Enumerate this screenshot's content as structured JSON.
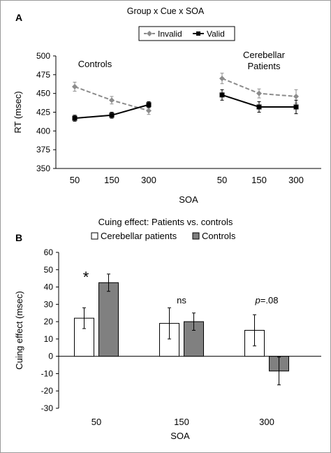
{
  "chart_data": [
    {
      "panel_label": "A",
      "type": "line",
      "title": "Group x Cue x SOA",
      "xlabel": "SOA",
      "ylabel": "RT (msec)",
      "ylim": [
        350,
        500
      ],
      "yticks": [
        350,
        375,
        400,
        425,
        450,
        475,
        500
      ],
      "grid": false,
      "legend_position": "top-right",
      "series": [
        {
          "name": "Invalid",
          "color": "#8c8c8c",
          "dashed": true,
          "marker": "diamond"
        },
        {
          "name": "Valid",
          "color": "#000000",
          "dashed": false,
          "marker": "square"
        }
      ],
      "groups": [
        {
          "label": "Controls",
          "x": [
            "50",
            "150",
            "300"
          ],
          "values": {
            "Invalid": [
              459,
              441,
              427
            ],
            "Valid": [
              417,
              421,
              435
            ]
          },
          "errors": {
            "Invalid": [
              6,
              5,
              5
            ],
            "Valid": [
              4,
              4,
              4
            ]
          }
        },
        {
          "label": "Cerebellar Patients",
          "x": [
            "50",
            "150",
            "300"
          ],
          "values": {
            "Invalid": [
              470,
              450,
              446
            ],
            "Valid": [
              448,
              432,
              432
            ]
          },
          "errors": {
            "Invalid": [
              7,
              6,
              9
            ],
            "Valid": [
              7,
              7,
              9
            ]
          }
        }
      ]
    },
    {
      "panel_label": "B",
      "type": "bar",
      "title": "Cuing effect: Patients vs. controls",
      "xlabel": "SOA",
      "ylabel": "Cuing effect (msec)",
      "ylim": [
        -30,
        60
      ],
      "yticks": [
        -30,
        -20,
        -10,
        0,
        10,
        20,
        30,
        40,
        50,
        60
      ],
      "grid": false,
      "legend_position": "top",
      "categories": [
        "50",
        "150",
        "300"
      ],
      "series": [
        {
          "name": "Cerebellar patients",
          "color": "#ffffff",
          "values": [
            22,
            19,
            15
          ],
          "errors": [
            6,
            9,
            9
          ]
        },
        {
          "name": "Controls",
          "color": "#808080",
          "values": [
            42.5,
            20,
            -8.5
          ],
          "errors": [
            5,
            5,
            8
          ]
        }
      ],
      "annotations": [
        {
          "category": "50",
          "text": "*"
        },
        {
          "category": "150",
          "text": "ns"
        },
        {
          "category": "300",
          "text": "p=.08"
        }
      ]
    }
  ]
}
